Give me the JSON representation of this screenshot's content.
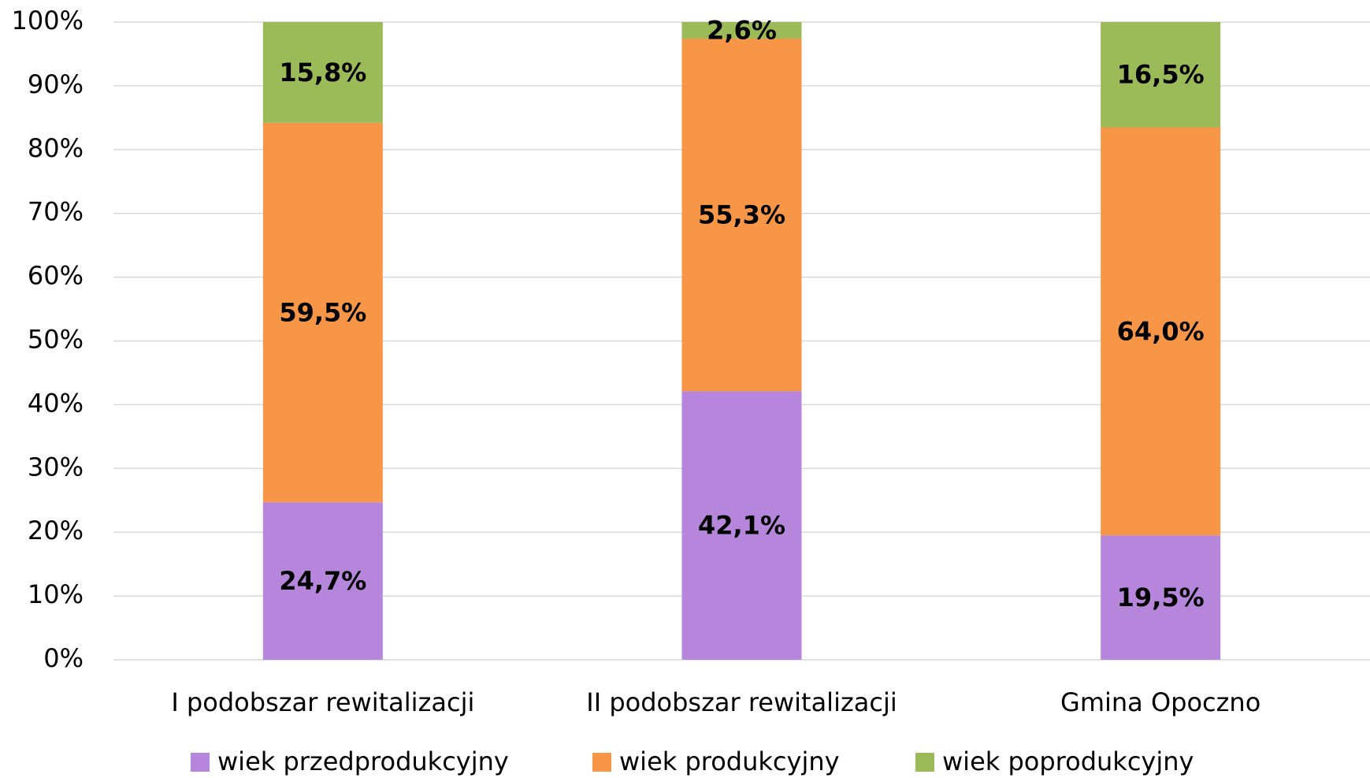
{
  "chart_data": {
    "type": "stacked_bar",
    "categories": [
      "I podobszar rewitalizacji",
      "II podobszar rewitalizacji",
      "Gmina Opoczno"
    ],
    "series": [
      {
        "name": "wiek przedprodukcyjny",
        "color": "#b586db",
        "values": [
          24.7,
          42.1,
          19.5
        ],
        "value_labels": [
          "24,7%",
          "42,1%",
          "19,5%"
        ]
      },
      {
        "name": "wiek produkcyjny",
        "color": "#f79646",
        "values": [
          59.5,
          55.3,
          64.0
        ],
        "value_labels": [
          "59,5%",
          "55,3%",
          "64,0%"
        ]
      },
      {
        "name": "wiek poprodukcyjny",
        "color": "#9bbb59",
        "values": [
          15.8,
          2.6,
          16.5
        ],
        "value_labels": [
          "15,8%",
          "2,6%",
          "16,5%"
        ]
      }
    ],
    "ylim": [
      0,
      100
    ],
    "yticks": [
      {
        "value": 0,
        "label": "0%"
      },
      {
        "value": 10,
        "label": "10%"
      },
      {
        "value": 20,
        "label": "20%"
      },
      {
        "value": 30,
        "label": "30%"
      },
      {
        "value": 40,
        "label": "40%"
      },
      {
        "value": 50,
        "label": "50%"
      },
      {
        "value": 60,
        "label": "60%"
      },
      {
        "value": 70,
        "label": "70%"
      },
      {
        "value": 80,
        "label": "80%"
      },
      {
        "value": 90,
        "label": "90%"
      },
      {
        "value": 100,
        "label": "100%"
      }
    ],
    "grid": true,
    "legend": "bottom"
  }
}
